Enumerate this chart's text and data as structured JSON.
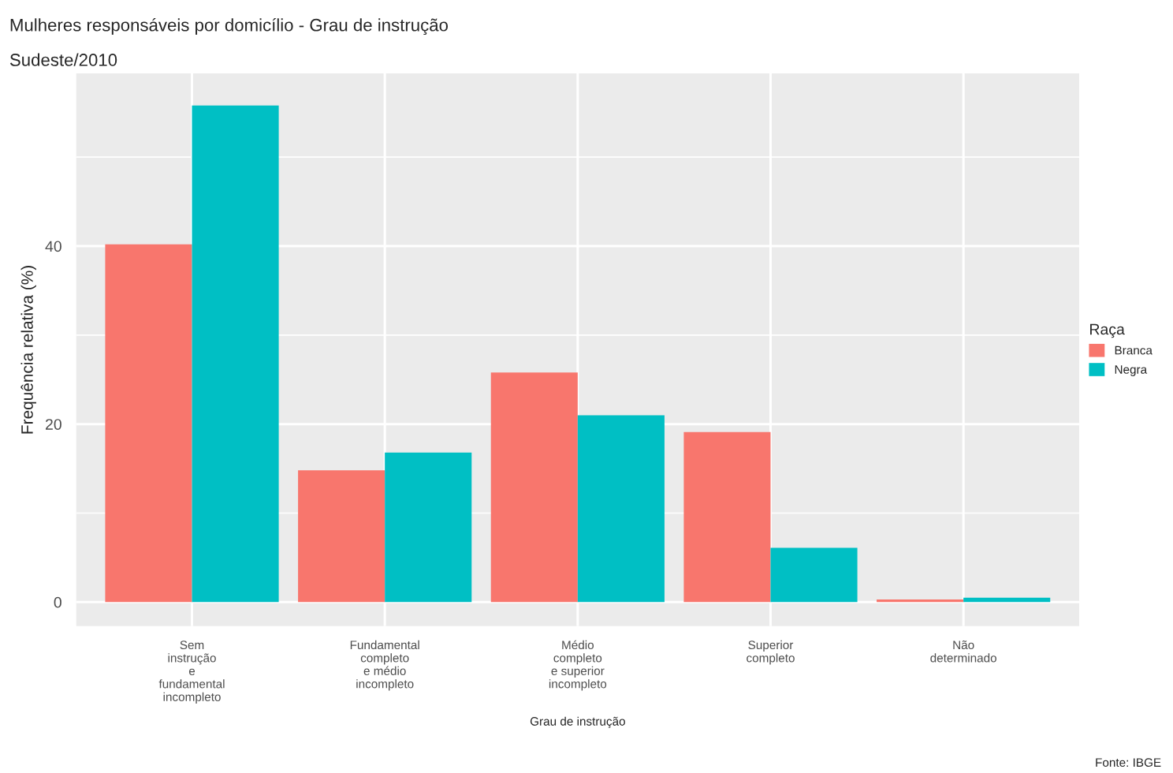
{
  "chart_data": {
    "type": "bar",
    "title": "Mulheres responsáveis por domicílio - Grau de instrução",
    "subtitle": "Sudeste/2010",
    "xlabel": "Grau de instrução",
    "ylabel": "Frequência relativa (%)",
    "legend_title": "Raça",
    "categories": [
      "Sem\ninstrução\ne\nfundamental\nincompleto",
      "Fundamental\ncompleto\ne médio\nincompleto",
      "Médio\ncompleto\ne superior\nincompleto",
      "Superior\ncompleto",
      "Não\ndeterminado"
    ],
    "series": [
      {
        "name": "Branca",
        "color": "#f8766d",
        "values": [
          40.2,
          14.8,
          25.8,
          19.1,
          0.3
        ]
      },
      {
        "name": "Negra",
        "color": "#00bfc4",
        "values": [
          55.8,
          16.8,
          21.0,
          6.1,
          0.5
        ]
      }
    ],
    "ylim": [
      -2.7,
      59.4
    ],
    "yticks": [
      0,
      20,
      40
    ],
    "grid": true,
    "legend": "right",
    "annotations": [
      "Fonte: IBGE"
    ]
  }
}
